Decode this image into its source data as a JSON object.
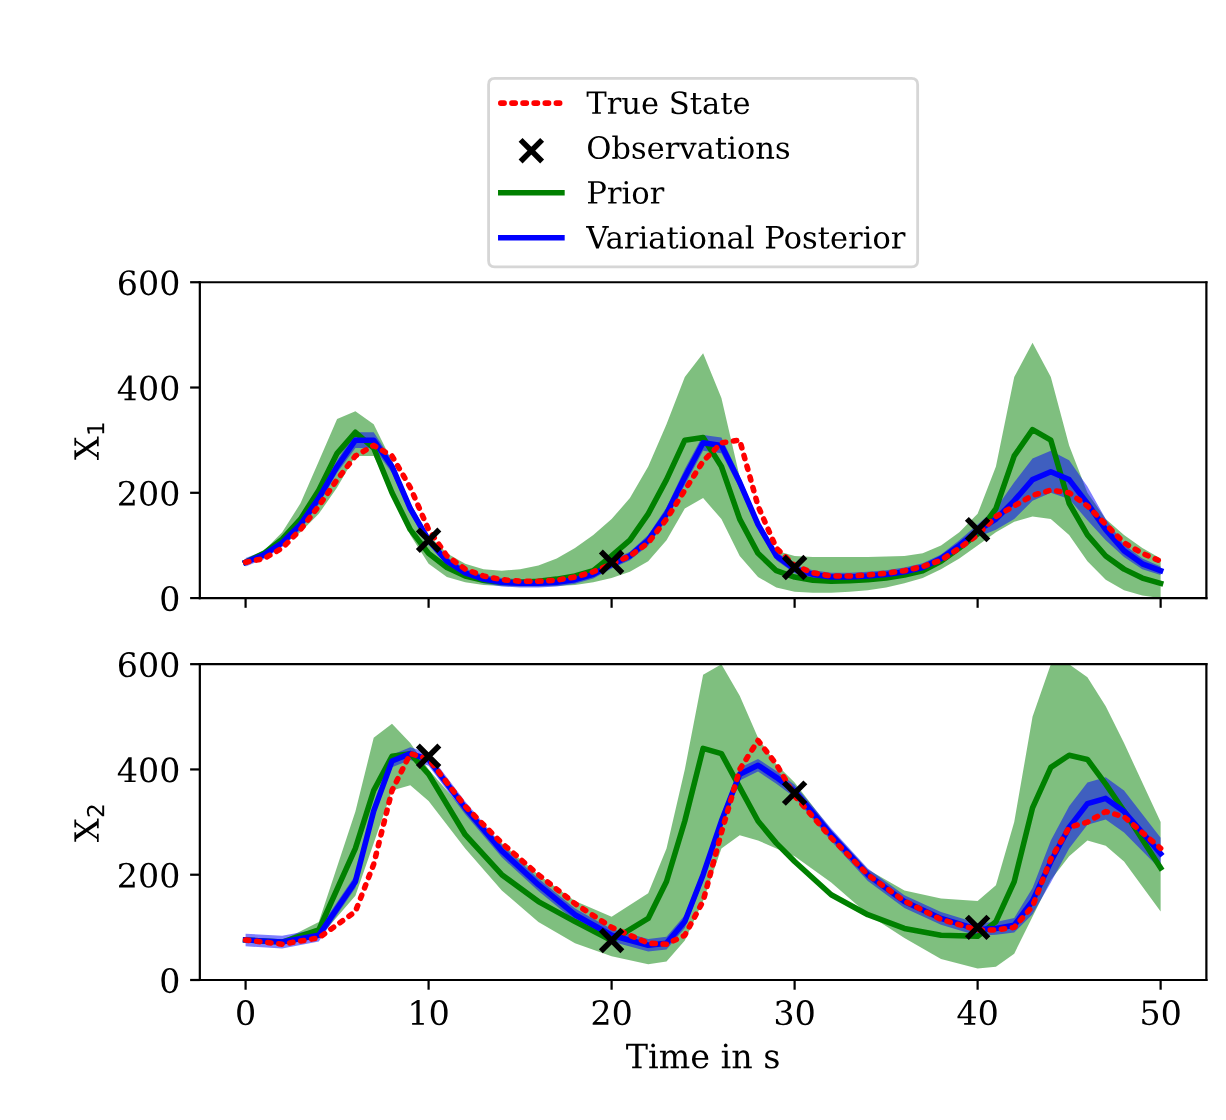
{
  "chart_data": [
    {
      "type": "line",
      "ylabel": "X$_{1}$",
      "xlim": [
        -2.5,
        52.5
      ],
      "xticks": [
        0,
        10,
        20,
        30,
        40,
        50
      ],
      "ylim": [
        0,
        600
      ],
      "yticks": [
        0,
        200,
        400,
        600
      ],
      "tick_labels": "y",
      "legend": "top",
      "grid": false,
      "series": [
        {
          "name": "True State",
          "line_style": "dotted",
          "color": "#ff0000",
          "x": [
            0,
            1,
            2,
            3,
            4,
            5,
            6,
            7,
            8,
            9,
            10,
            11,
            12,
            13,
            14,
            15,
            16,
            17,
            18,
            19,
            20,
            21,
            22,
            23,
            24,
            25,
            26,
            27,
            28,
            29,
            30,
            31,
            32,
            33,
            34,
            35,
            36,
            37,
            38,
            39,
            40,
            41,
            42,
            43,
            44,
            45,
            46,
            47,
            48,
            49,
            50
          ],
          "values": [
            68,
            75,
            95,
            130,
            175,
            225,
            270,
            290,
            270,
            210,
            130,
            80,
            55,
            42,
            35,
            32,
            32,
            34,
            40,
            50,
            65,
            80,
            105,
            150,
            205,
            260,
            295,
            300,
            175,
            95,
            62,
            48,
            42,
            42,
            44,
            47,
            52,
            60,
            72,
            95,
            120,
            155,
            175,
            195,
            205,
            200,
            175,
            140,
            105,
            85,
            70
          ]
        },
        {
          "name": "Observations",
          "type": "scatter",
          "marker": "cross",
          "color": "#000000",
          "x": [
            10,
            20,
            30,
            40
          ],
          "values": [
            110,
            68,
            58,
            130
          ]
        },
        {
          "name": "Prior",
          "line_style": "solid",
          "color": "#008000",
          "x": [
            0,
            1,
            2,
            3,
            4,
            5,
            6,
            7,
            8,
            9,
            10,
            11,
            12,
            13,
            14,
            15,
            16,
            17,
            18,
            19,
            20,
            21,
            22,
            23,
            24,
            25,
            26,
            27,
            28,
            29,
            30,
            31,
            32,
            33,
            34,
            35,
            36,
            37,
            38,
            39,
            40,
            41,
            42,
            43,
            44,
            45,
            46,
            47,
            48,
            49,
            50
          ],
          "values": [
            68,
            85,
            112,
            150,
            205,
            275,
            315,
            285,
            200,
            130,
            85,
            58,
            42,
            34,
            30,
            30,
            32,
            36,
            42,
            52,
            80,
            110,
            160,
            225,
            300,
            305,
            250,
            150,
            85,
            52,
            40,
            34,
            32,
            33,
            35,
            38,
            44,
            52,
            70,
            95,
            122,
            170,
            270,
            320,
            300,
            180,
            120,
            80,
            55,
            38,
            28
          ],
          "upper": [
            68,
            90,
            125,
            180,
            260,
            340,
            355,
            330,
            260,
            180,
            120,
            85,
            65,
            55,
            52,
            55,
            62,
            75,
            95,
            120,
            150,
            190,
            250,
            330,
            420,
            465,
            380,
            230,
            130,
            90,
            80,
            78,
            78,
            78,
            78,
            79,
            80,
            85,
            100,
            125,
            160,
            250,
            420,
            485,
            420,
            290,
            200,
            150,
            120,
            95,
            75
          ],
          "lower": [
            68,
            80,
            100,
            125,
            160,
            210,
            270,
            270,
            200,
            120,
            65,
            40,
            30,
            25,
            23,
            22,
            22,
            23,
            25,
            30,
            38,
            50,
            70,
            110,
            170,
            190,
            150,
            80,
            40,
            20,
            12,
            10,
            10,
            12,
            15,
            20,
            28,
            38,
            55,
            75,
            100,
            125,
            145,
            155,
            150,
            120,
            70,
            35,
            15,
            5,
            0
          ]
        },
        {
          "name": "Variational Posterior",
          "line_style": "solid",
          "color": "#0000ff",
          "x": [
            0,
            1,
            2,
            3,
            4,
            5,
            6,
            7,
            8,
            9,
            10,
            11,
            12,
            13,
            14,
            15,
            16,
            17,
            18,
            19,
            20,
            21,
            22,
            23,
            24,
            25,
            26,
            27,
            28,
            29,
            30,
            31,
            32,
            33,
            34,
            35,
            36,
            37,
            38,
            39,
            40,
            41,
            42,
            43,
            44,
            45,
            46,
            47,
            48,
            49,
            50
          ],
          "values": [
            68,
            82,
            105,
            140,
            190,
            250,
            300,
            300,
            250,
            170,
            110,
            70,
            48,
            36,
            30,
            28,
            28,
            30,
            35,
            45,
            64,
            80,
            110,
            160,
            230,
            295,
            290,
            220,
            140,
            80,
            55,
            45,
            40,
            40,
            42,
            45,
            50,
            58,
            75,
            100,
            128,
            150,
            185,
            225,
            240,
            225,
            180,
            130,
            90,
            65,
            52
          ],
          "upper": [
            76,
            90,
            113,
            150,
            202,
            262,
            315,
            315,
            262,
            180,
            118,
            78,
            56,
            44,
            38,
            36,
            36,
            38,
            43,
            53,
            72,
            88,
            120,
            172,
            245,
            310,
            305,
            232,
            150,
            88,
            63,
            53,
            48,
            48,
            50,
            53,
            58,
            66,
            83,
            110,
            140,
            170,
            220,
            265,
            280,
            262,
            212,
            150,
            102,
            75,
            60
          ],
          "lower": [
            60,
            74,
            97,
            130,
            178,
            238,
            285,
            285,
            238,
            160,
            102,
            62,
            40,
            28,
            22,
            20,
            20,
            22,
            27,
            37,
            56,
            72,
            100,
            148,
            215,
            280,
            275,
            208,
            130,
            72,
            47,
            37,
            32,
            32,
            34,
            37,
            42,
            50,
            67,
            90,
            116,
            130,
            150,
            185,
            200,
            188,
            148,
            110,
            78,
            55,
            44
          ]
        }
      ]
    },
    {
      "type": "line",
      "xlabel": "Time in s",
      "ylabel": "X$_{2}$",
      "xlim": [
        -2.5,
        52.5
      ],
      "xticks": [
        0,
        10,
        20,
        30,
        40,
        50
      ],
      "ylim": [
        0,
        600
      ],
      "yticks": [
        0,
        200,
        400,
        600
      ],
      "grid": false,
      "series": [
        {
          "line_style": "dotted",
          "color": "#ff0000",
          "x": [
            0,
            2,
            4,
            6,
            7,
            8,
            9,
            10,
            12,
            14,
            16,
            18,
            20,
            22,
            23,
            24,
            25,
            26,
            27,
            28,
            29,
            30,
            32,
            34,
            36,
            38,
            40,
            41,
            42,
            43,
            44,
            45,
            46,
            47,
            48,
            50
          ],
          "values": [
            76,
            68,
            80,
            130,
            220,
            360,
            430,
            420,
            330,
            260,
            200,
            145,
            100,
            70,
            68,
            85,
            150,
            280,
            400,
            455,
            410,
            350,
            270,
            200,
            150,
            115,
            95,
            95,
            100,
            140,
            230,
            290,
            300,
            320,
            310,
            250
          ]
        },
        {
          "type": "scatter",
          "marker": "cross",
          "color": "#000000",
          "x": [
            10,
            20,
            30,
            40
          ],
          "values": [
            425,
            75,
            355,
            100
          ]
        },
        {
          "line_style": "solid",
          "color": "#008000",
          "x": [
            0,
            2,
            4,
            6,
            7,
            8,
            9,
            10,
            12,
            14,
            16,
            18,
            20,
            22,
            23,
            24,
            25,
            26,
            27,
            28,
            29,
            30,
            32,
            34,
            36,
            38,
            40,
            41,
            42,
            43,
            44,
            45,
            46,
            47,
            48,
            50
          ],
          "values": [
            76,
            72,
            95,
            250,
            360,
            425,
            430,
            391,
            276,
            200,
            149,
            111,
            75,
            117,
            187,
            302,
            440,
            430,
            366,
            302,
            260,
            225,
            162,
            124,
            98,
            85,
            83,
            111,
            187,
            327,
            404,
            427,
            419,
            372,
            321,
            213
          ],
          "upper": [
            76,
            75,
            110,
            320,
            460,
            487,
            450,
            400,
            320,
            260,
            200,
            150,
            120,
            165,
            250,
            400,
            580,
            600,
            540,
            460,
            410,
            375,
            285,
            210,
            170,
            155,
            150,
            180,
            300,
            500,
            600,
            600,
            575,
            520,
            450,
            300
          ],
          "lower": [
            76,
            70,
            80,
            160,
            260,
            360,
            370,
            340,
            250,
            170,
            110,
            70,
            45,
            30,
            35,
            75,
            150,
            250,
            275,
            265,
            250,
            235,
            185,
            125,
            80,
            40,
            22,
            25,
            50,
            120,
            190,
            235,
            265,
            255,
            225,
            130
          ]
        },
        {
          "line_style": "solid",
          "color": "#0000ff",
          "x": [
            0,
            2,
            4,
            6,
            7,
            8,
            9,
            10,
            12,
            14,
            16,
            18,
            20,
            22,
            23,
            24,
            25,
            26,
            27,
            28,
            29,
            30,
            32,
            34,
            36,
            38,
            40,
            41,
            42,
            43,
            44,
            45,
            46,
            47,
            48,
            50
          ],
          "values": [
            76,
            72,
            85,
            187,
            321,
            416,
            430,
            419,
            327,
            245,
            181,
            124,
            85,
            66,
            70,
            111,
            200,
            302,
            391,
            408,
            385,
            359,
            276,
            200,
            149,
            117,
            96,
            98,
            104,
            150,
            225,
            290,
            335,
            345,
            320,
            240
          ],
          "upper": [
            88,
            84,
            97,
            199,
            333,
            428,
            442,
            431,
            339,
            257,
            193,
            136,
            97,
            78,
            82,
            123,
            212,
            314,
            403,
            420,
            397,
            371,
            288,
            212,
            161,
            129,
            108,
            110,
            118,
            175,
            265,
            330,
            375,
            385,
            360,
            270
          ],
          "lower": [
            64,
            60,
            73,
            175,
            309,
            404,
            418,
            407,
            315,
            233,
            169,
            112,
            73,
            54,
            58,
            99,
            188,
            290,
            379,
            396,
            373,
            347,
            264,
            188,
            137,
            105,
            84,
            86,
            90,
            125,
            185,
            250,
            295,
            305,
            280,
            210
          ]
        }
      ]
    }
  ]
}
